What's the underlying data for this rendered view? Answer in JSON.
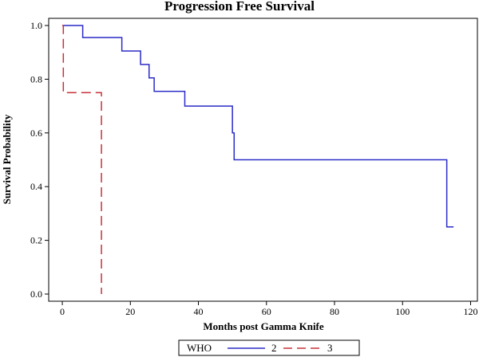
{
  "chart_data": {
    "type": "line",
    "title": "Progression Free Survival",
    "xlabel": "Months post Gamma Knife",
    "ylabel": "Survival Probability",
    "xlim": [
      -4,
      122
    ],
    "ylim": [
      0,
      1
    ],
    "xticks": [
      "0",
      "20",
      "40",
      "60",
      "80",
      "100",
      "120"
    ],
    "yticks": [
      "0.0",
      "0.2",
      "0.4",
      "0.6",
      "0.8",
      "1.0"
    ],
    "xtick_values": [
      0,
      20,
      40,
      60,
      80,
      100,
      120
    ],
    "ytick_values": [
      0,
      0.2,
      0.4,
      0.6,
      0.8,
      1.0
    ],
    "step": true,
    "series": [
      {
        "name": "2",
        "color": "#2b2bc8",
        "dash": "solid",
        "x": [
          0,
          6,
          17.5,
          23,
          25.5,
          27,
          36,
          50,
          50.5,
          113,
          115
        ],
        "y": [
          1.0,
          0.955,
          0.905,
          0.855,
          0.805,
          0.755,
          0.7,
          0.6,
          0.5,
          0.25,
          0.25
        ]
      },
      {
        "name": "3",
        "color": "#c8303a",
        "dash": "dashed",
        "x": [
          0,
          0.3,
          11.5
        ],
        "y": [
          1.0,
          0.75,
          0.0
        ]
      }
    ],
    "legend": {
      "title": "WHO",
      "placement": "bottom-center",
      "entries": [
        "2",
        "3"
      ]
    }
  }
}
